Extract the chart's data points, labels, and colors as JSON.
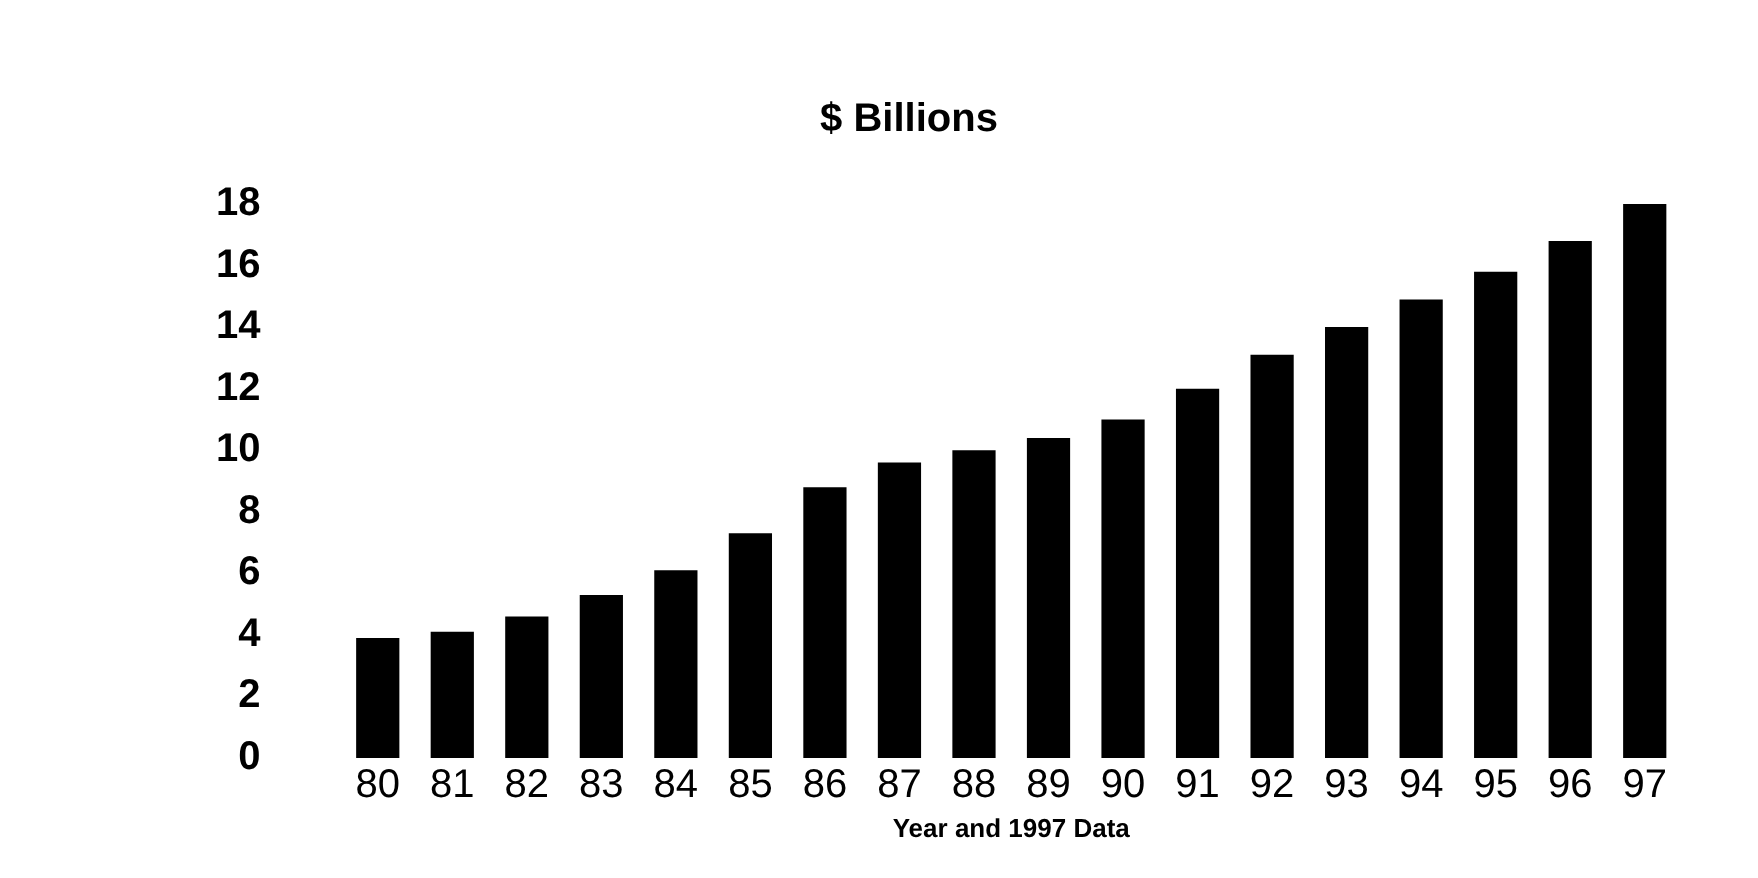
{
  "chart_data": {
    "type": "bar",
    "title": "$ Billions",
    "xlabel": "Year and 1997 Data",
    "categories": [
      "80",
      "81",
      "82",
      "83",
      "84",
      "85",
      "86",
      "87",
      "88",
      "89",
      "90",
      "91",
      "92",
      "93",
      "94",
      "95",
      "96",
      "97"
    ],
    "values": [
      3.9,
      4.1,
      4.6,
      5.3,
      6.1,
      7.3,
      8.8,
      9.6,
      10.0,
      10.4,
      11.0,
      12.0,
      13.1,
      14.0,
      14.9,
      15.8,
      16.8,
      18.0
    ],
    "color": "#000000",
    "ylim": [
      0,
      18
    ],
    "yticks": [
      0,
      2,
      4,
      6,
      8,
      10,
      12,
      14,
      16,
      18
    ],
    "grid": false,
    "legend": false
  }
}
